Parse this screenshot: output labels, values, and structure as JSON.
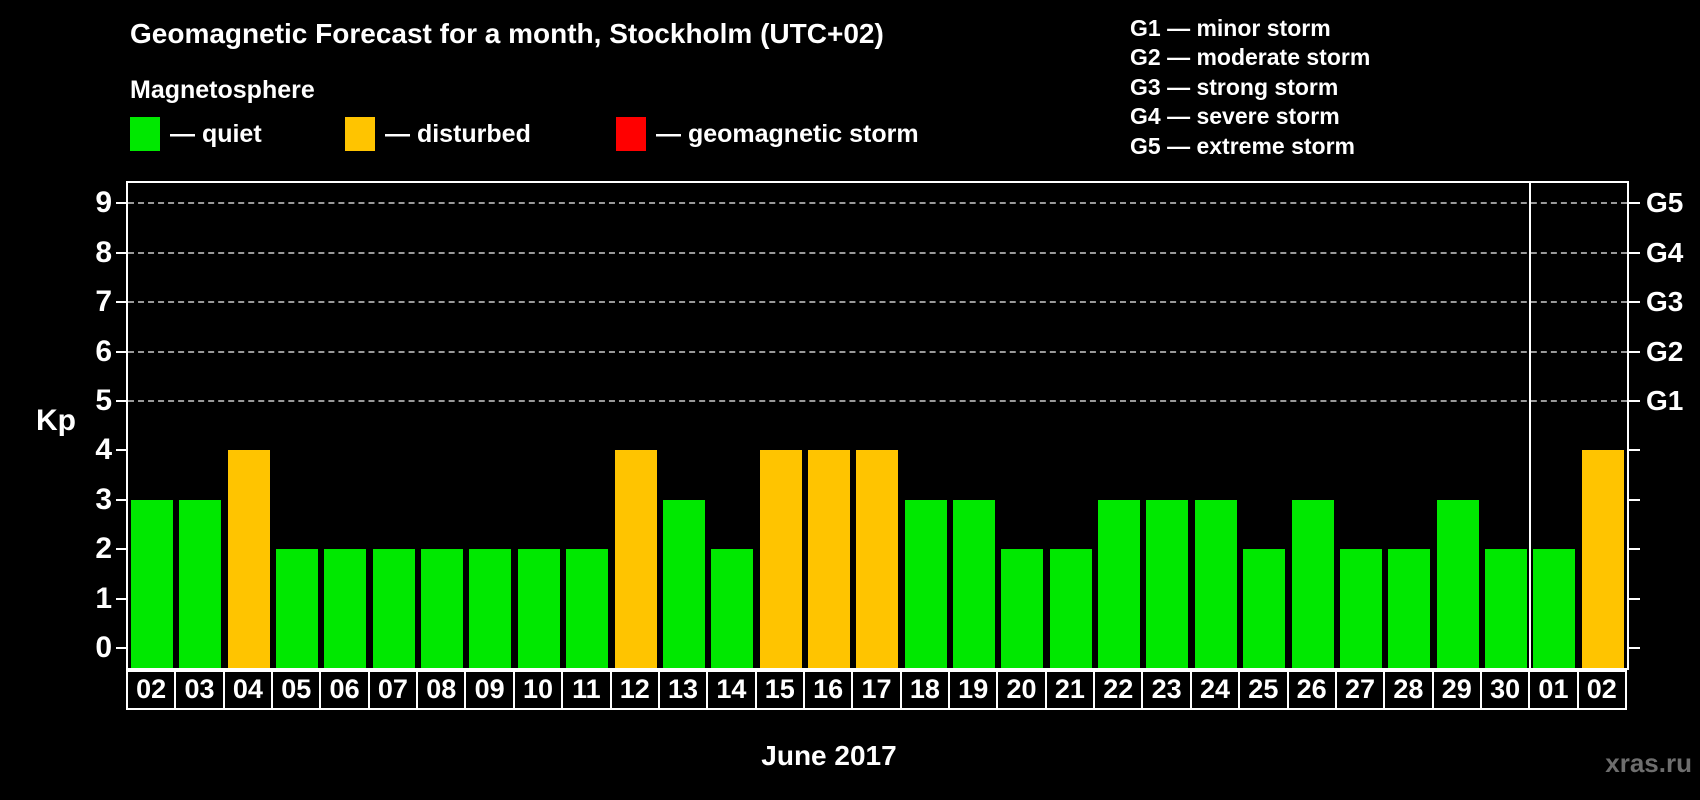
{
  "title": "Geomagnetic Forecast for a month, Stockholm (UTC+02)",
  "subtitle": "Magnetosphere",
  "legend": {
    "items": [
      {
        "name": "quiet",
        "label": "— quiet",
        "color": "#00e800"
      },
      {
        "name": "disturbed",
        "label": "— disturbed",
        "color": "#ffc400"
      },
      {
        "name": "storm",
        "label": "— geomagnetic storm",
        "color": "#ff0000"
      }
    ]
  },
  "storm_scale_legend": [
    "G1 — minor storm",
    "G2 — moderate storm",
    "G3 — strong storm",
    "G4 — severe storm",
    "G5 — extreme storm"
  ],
  "chart_data": {
    "type": "bar",
    "title": "Geomagnetic Forecast for a month, Stockholm (UTC+02)",
    "xlabel": "June 2017",
    "ylabel": "Kp",
    "ylim": [
      0,
      9
    ],
    "yticks": [
      0,
      1,
      2,
      3,
      4,
      5,
      6,
      7,
      8,
      9
    ],
    "gridlines": [
      5,
      6,
      7,
      8,
      9
    ],
    "grid": "dashed, at G-storm levels only",
    "legend_position": "top",
    "right_axis_labels": [
      {
        "value": 5,
        "label": "G1"
      },
      {
        "value": 6,
        "label": "G2"
      },
      {
        "value": 7,
        "label": "G3"
      },
      {
        "value": 8,
        "label": "G4"
      },
      {
        "value": 9,
        "label": "G5"
      }
    ],
    "categories": [
      "02",
      "03",
      "04",
      "05",
      "06",
      "07",
      "08",
      "09",
      "10",
      "11",
      "12",
      "13",
      "14",
      "15",
      "16",
      "17",
      "18",
      "19",
      "20",
      "21",
      "22",
      "23",
      "24",
      "25",
      "26",
      "27",
      "28",
      "29",
      "30",
      "01",
      "02"
    ],
    "values": [
      3,
      3,
      4,
      2,
      2,
      2,
      2,
      2,
      2,
      2,
      4,
      3,
      2,
      4,
      4,
      4,
      3,
      3,
      2,
      2,
      3,
      3,
      3,
      2,
      3,
      2,
      2,
      3,
      2,
      2,
      4
    ],
    "statuses": [
      "quiet",
      "quiet",
      "disturbed",
      "quiet",
      "quiet",
      "quiet",
      "quiet",
      "quiet",
      "quiet",
      "quiet",
      "disturbed",
      "quiet",
      "quiet",
      "disturbed",
      "disturbed",
      "disturbed",
      "quiet",
      "quiet",
      "quiet",
      "quiet",
      "quiet",
      "quiet",
      "quiet",
      "quiet",
      "quiet",
      "quiet",
      "quiet",
      "quiet",
      "quiet",
      "quiet",
      "disturbed"
    ],
    "colors": {
      "quiet": "#00e800",
      "disturbed": "#ffc400",
      "storm": "#ff0000"
    },
    "month_separator_after_index": 28
  },
  "watermark": "xras.ru"
}
